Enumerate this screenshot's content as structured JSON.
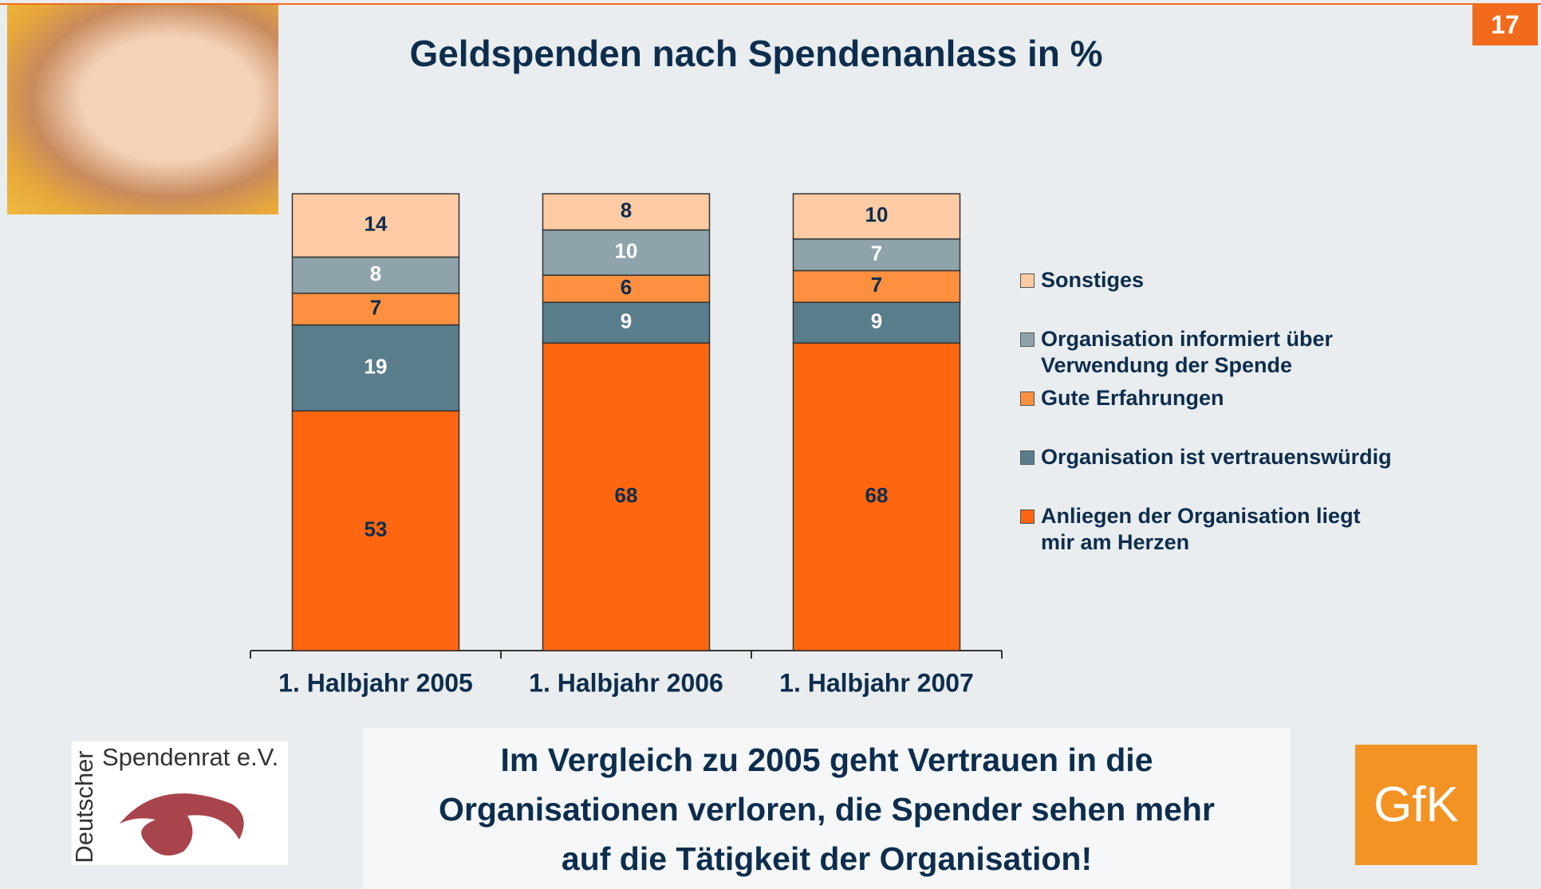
{
  "page_number": "17",
  "chart_data": {
    "type": "stacked_bar",
    "title": "Geldspenden nach Spendenanlass in %",
    "categories": [
      "1. Halbjahr 2005",
      "1. Halbjahr 2006",
      "1. Halbjahr 2007"
    ],
    "series": [
      {
        "name": "Anliegen der Organisation liegt mir am Herzen",
        "color": "#ff6610",
        "label_color": "#0d2d4d",
        "values": [
          53,
          68,
          68
        ]
      },
      {
        "name": "Organisation ist vertrauenswürdig",
        "color": "#5a7d8c",
        "label_color": "#ffffff",
        "values": [
          19,
          9,
          9
        ]
      },
      {
        "name": "Gute Erfahrungen",
        "color": "#ff9040",
        "label_color": "#0d2d4d",
        "values": [
          7,
          6,
          7
        ]
      },
      {
        "name": "Organisation informiert über Verwendung der Spende",
        "color": "#8fa3ab",
        "label_color": "#ffffff",
        "values": [
          8,
          10,
          7
        ]
      },
      {
        "name": "Sonstiges",
        "color": "#ffcba4",
        "label_color": "#0d2d4d",
        "values": [
          14,
          8,
          10
        ]
      }
    ],
    "legend": "right"
  },
  "footer": {
    "lines": [
      "Im Vergleich zu 2005 geht Vertrauen in die",
      "Organisationen verloren, die Spender sehen mehr",
      "auf die Tätigkeit der Organisation!"
    ]
  },
  "logos": {
    "spendenrat_vertical": "Deutscher",
    "spendenrat": "Spendenrat e.V.",
    "gfk": "GfK"
  }
}
